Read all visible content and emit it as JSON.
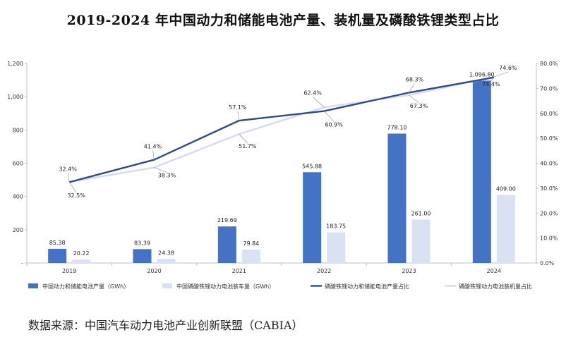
{
  "title": "2019-2024 年中国动力和储能电池产量、装机量及磷酸铁锂类型占比",
  "source": "数据来源：中国汽车动力电池产业创新联盟（CABIA）",
  "chart_data": {
    "type": "bar",
    "categories": [
      "2019",
      "2020",
      "2021",
      "2022",
      "2023",
      "2024"
    ],
    "ylim": [
      0,
      1200
    ],
    "yticks": [
      0,
      200,
      400,
      600,
      800,
      1000,
      1200
    ],
    "ytick_labels": [
      "-",
      "200",
      "400",
      "600",
      "800",
      "1,000",
      "1,200"
    ],
    "y2lim": [
      0,
      80
    ],
    "y2ticks": [
      0,
      10,
      20,
      30,
      40,
      50,
      60,
      70,
      80
    ],
    "y2tick_labels": [
      "0.0%",
      "10.0%",
      "20.0%",
      "30.0%",
      "40.0%",
      "50.0%",
      "60.0%",
      "70.0%",
      "80.0%"
    ],
    "series": [
      {
        "name": "中国动力和储能电池产量（GWh）",
        "type": "bar",
        "axis": "left",
        "color": "#4472c4",
        "values": [
          85.38,
          83.39,
          219.69,
          545.88,
          778.1,
          1096.8
        ],
        "labels": [
          "85.38",
          "83.39",
          "219.69",
          "545.88",
          "778.10",
          "1,096.80"
        ]
      },
      {
        "name": "中国磷酸铁锂动力电池装车量（GWh）",
        "type": "bar",
        "axis": "left",
        "color": "#d9e1f2",
        "values": [
          20.22,
          24.38,
          79.84,
          183.75,
          261.0,
          409.0
        ],
        "labels": [
          "20.22",
          "24.38",
          "79.84",
          "183.75",
          "261.00",
          "409.00"
        ]
      },
      {
        "name": "磷酸铁锂动力和储能电池产量占比",
        "type": "line",
        "axis": "right",
        "color": "#2f4b8c",
        "values": [
          32.4,
          41.4,
          57.1,
          60.9,
          68.3,
          74.4
        ],
        "labels": [
          "32.4%",
          "41.4%",
          "57.1%",
          "60.9%",
          "68.3%",
          "74.4%"
        ]
      },
      {
        "name": "磷酸铁锂动力电池装机量占比",
        "type": "line",
        "axis": "right",
        "color": "#d3dcf0",
        "values": [
          32.5,
          38.3,
          51.7,
          62.4,
          67.3,
          74.6
        ],
        "labels": [
          "32.5%",
          "38.3%",
          "51.7%",
          "62.4%",
          "67.3%",
          "74.6%"
        ]
      }
    ],
    "legend_position": "bottom",
    "grid": false
  }
}
